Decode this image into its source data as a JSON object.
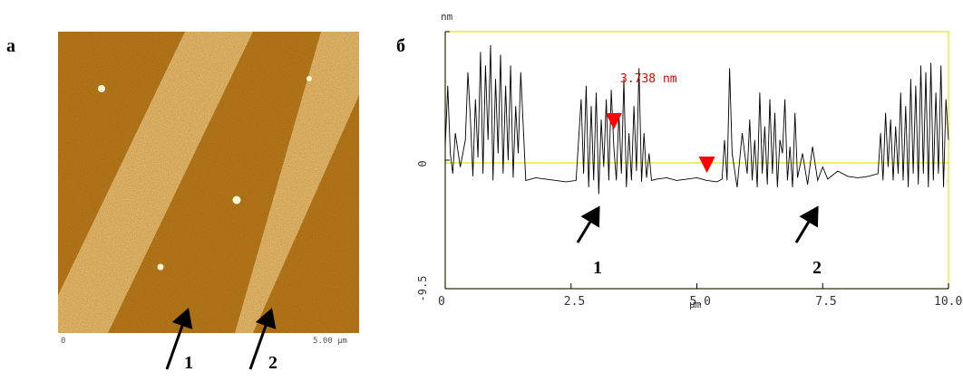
{
  "panel_a": {
    "letter": "а",
    "scale_start": "0",
    "scale_end": "5.00 μm",
    "markers": [
      "1",
      "2"
    ]
  },
  "panel_b": {
    "letter": "б",
    "markers": [
      "1",
      "2"
    ]
  },
  "chart_data": {
    "type": "line",
    "ylabel": "nm",
    "xlabel": "μm",
    "annotation": "3.738 nm",
    "xlim": [
      0,
      10.0
    ],
    "ylim": [
      -9.5,
      9.5
    ],
    "xticks": [
      "0",
      "2.5",
      "5.0",
      "7.5",
      "10.0"
    ],
    "yticks": [
      "-9.5",
      "0",
      "9.5"
    ],
    "ytick_labels_visible": [
      "-9.5",
      "0"
    ],
    "cursor_markers_x": [
      3.35,
      5.2
    ],
    "reference_line_y": 0,
    "series": [
      {
        "values_x": [
          0,
          0.05,
          0.1,
          0.15,
          0.2,
          0.3,
          0.4,
          0.45,
          0.5,
          0.55,
          0.6,
          0.65,
          0.7,
          0.75,
          0.8,
          0.85,
          0.9,
          0.95,
          1.0,
          1.05,
          1.1,
          1.15,
          1.2,
          1.25,
          1.3,
          1.35,
          1.4,
          1.45,
          1.5,
          1.6,
          1.8,
          2.0,
          2.2,
          2.4,
          2.6,
          2.7,
          2.75,
          2.8,
          2.85,
          2.9,
          2.95,
          3.0,
          3.05,
          3.1,
          3.15,
          3.2,
          3.25,
          3.3,
          3.35,
          3.4,
          3.45,
          3.5,
          3.55,
          3.6,
          3.65,
          3.7,
          3.75,
          3.8,
          3.85,
          3.9,
          3.95,
          4.0,
          4.05,
          4.1,
          4.2,
          4.4,
          4.6,
          4.8,
          5.0,
          5.2,
          5.4,
          5.5,
          5.55,
          5.6,
          5.65,
          5.7,
          5.8,
          5.9,
          6.0,
          6.05,
          6.1,
          6.15,
          6.2,
          6.25,
          6.3,
          6.35,
          6.4,
          6.45,
          6.5,
          6.55,
          6.6,
          6.65,
          6.7,
          6.75,
          6.8,
          6.85,
          6.9,
          6.95,
          7.0,
          7.1,
          7.2,
          7.3,
          7.4,
          7.5,
          7.6,
          7.8,
          8.0,
          8.2,
          8.4,
          8.6,
          8.65,
          8.7,
          8.75,
          8.8,
          8.85,
          8.9,
          8.95,
          9.0,
          9.05,
          9.1,
          9.15,
          9.2,
          9.25,
          9.3,
          9.35,
          9.4,
          9.45,
          9.5,
          9.55,
          9.6,
          9.65,
          9.7,
          9.75,
          9.8,
          9.85,
          9.9,
          9.95,
          10.0
        ],
        "values_y": [
          1.0,
          5.5,
          0.5,
          -1.0,
          2.0,
          -0.5,
          1.5,
          6.5,
          3.0,
          -1.2,
          4.5,
          0.2,
          8.0,
          -1.0,
          7.0,
          1.5,
          8.5,
          -1.5,
          6.0,
          0.5,
          7.8,
          -1.0,
          5.5,
          0.0,
          7.0,
          -1.3,
          4.0,
          0.5,
          6.5,
          -1.5,
          -1.3,
          -1.4,
          -1.5,
          -1.6,
          -1.5,
          4.5,
          -1.0,
          5.5,
          -2.0,
          4.0,
          -1.5,
          5.0,
          -2.5,
          3.0,
          -0.5,
          4.5,
          -1.5,
          5.2,
          1.0,
          -1.5,
          3.5,
          -1.0,
          6.0,
          -2.0,
          2.0,
          -1.5,
          4.0,
          -0.8,
          6.8,
          -1.6,
          2.0,
          -1.3,
          0.5,
          -1.5,
          -1.4,
          -1.3,
          -1.5,
          -1.4,
          -1.3,
          -1.5,
          -1.6,
          -1.4,
          1.5,
          -1.5,
          6.8,
          0.5,
          -2.0,
          2.0,
          -1.0,
          3.0,
          -1.5,
          1.5,
          -2.0,
          5.0,
          -1.0,
          2.5,
          -1.8,
          4.5,
          -1.0,
          3.5,
          -2.0,
          1.5,
          0.5,
          4.5,
          -1.5,
          1.0,
          -2.0,
          3.5,
          -1.3,
          0.5,
          -1.8,
          1.0,
          -1.5,
          -0.5,
          -1.4,
          -0.8,
          -1.2,
          -1.3,
          -1.2,
          -1.0,
          2.0,
          -1.5,
          3.5,
          -0.5,
          3.0,
          -1.5,
          2.5,
          -1.0,
          5.0,
          -1.5,
          4.0,
          -2.0,
          6.0,
          -1.0,
          5.5,
          -1.8,
          7.0,
          -1.0,
          6.5,
          -2.0,
          7.2,
          -1.5,
          5.0,
          -1.0,
          7.0,
          -2.0,
          4.5,
          1.5
        ]
      }
    ]
  }
}
